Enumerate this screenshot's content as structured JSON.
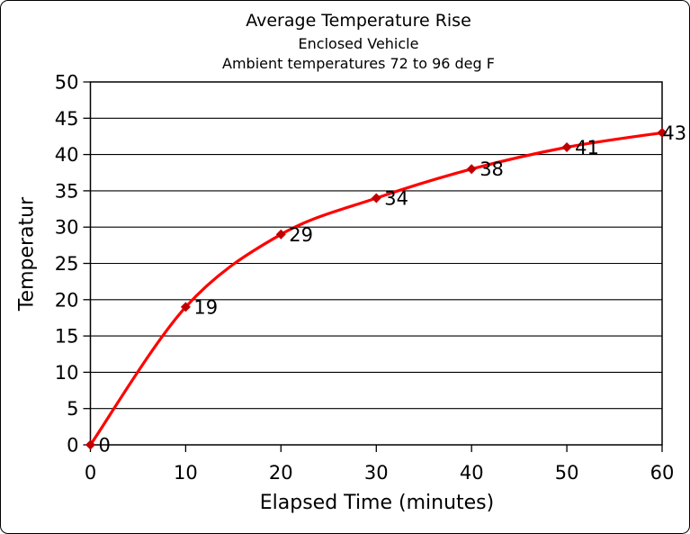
{
  "chart_data": {
    "type": "line",
    "title": "Average Temperature Rise",
    "subtitle": "Enclosed Vehicle",
    "annotation": "Ambient temperatures 72 to 96 deg F",
    "xlabel": "Elapsed Time (minutes)",
    "ylabel": "Temperatur",
    "x": [
      0,
      10,
      20,
      30,
      40,
      50,
      60
    ],
    "values": [
      0,
      19,
      29,
      34,
      38,
      41,
      43
    ],
    "data_labels": [
      "0",
      "19",
      "29",
      "34",
      "38",
      "41",
      "43"
    ],
    "xlim": [
      0,
      60
    ],
    "ylim": [
      0,
      50
    ],
    "x_ticks": [
      0,
      10,
      20,
      30,
      40,
      50,
      60
    ],
    "y_ticks": [
      0,
      5,
      10,
      15,
      20,
      25,
      30,
      35,
      40,
      45,
      50
    ],
    "grid": "horizontal",
    "smooth_line": true,
    "line_color": "#FF0000",
    "marker": "diamond",
    "marker_color": "#C00000",
    "text_color": "#000000",
    "axis_color": "#000000",
    "background_color": "#FFFFFF",
    "legend": "none"
  }
}
